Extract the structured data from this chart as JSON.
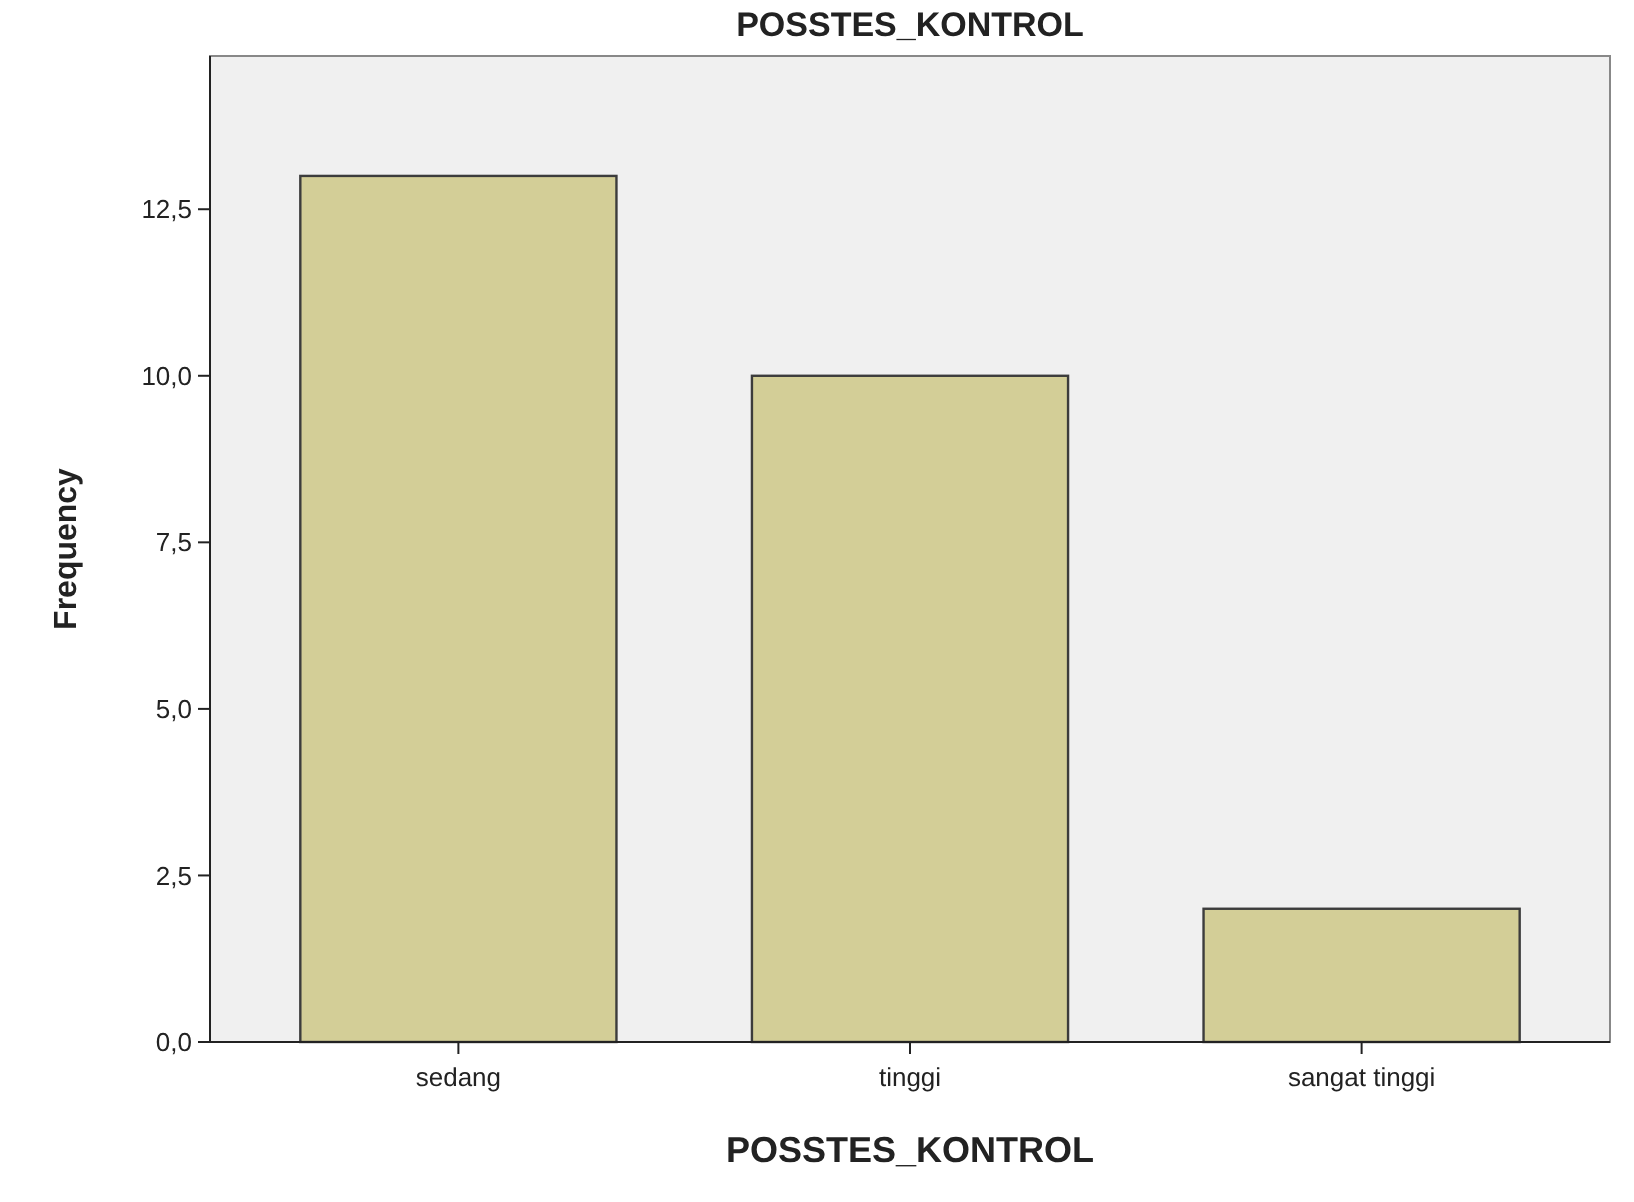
{
  "chart_data": {
    "type": "bar",
    "title": "POSSTES_KONTROL",
    "xlabel": "POSSTES_KONTROL",
    "ylabel": "Frequency",
    "categories": [
      "sedang",
      "tinggi",
      "sangat tinggi"
    ],
    "values": [
      13,
      10,
      2
    ],
    "color": "#d3ce97",
    "ylim": [
      0,
      14.8
    ],
    "yticks": [
      {
        "value": 0,
        "label": "0,0"
      },
      {
        "value": 2.5,
        "label": "2,5"
      },
      {
        "value": 5,
        "label": "5,0"
      },
      {
        "value": 7.5,
        "label": "7,5"
      },
      {
        "value": 10,
        "label": "10,0"
      },
      {
        "value": 12.5,
        "label": "12,5"
      }
    ],
    "grid": false
  }
}
